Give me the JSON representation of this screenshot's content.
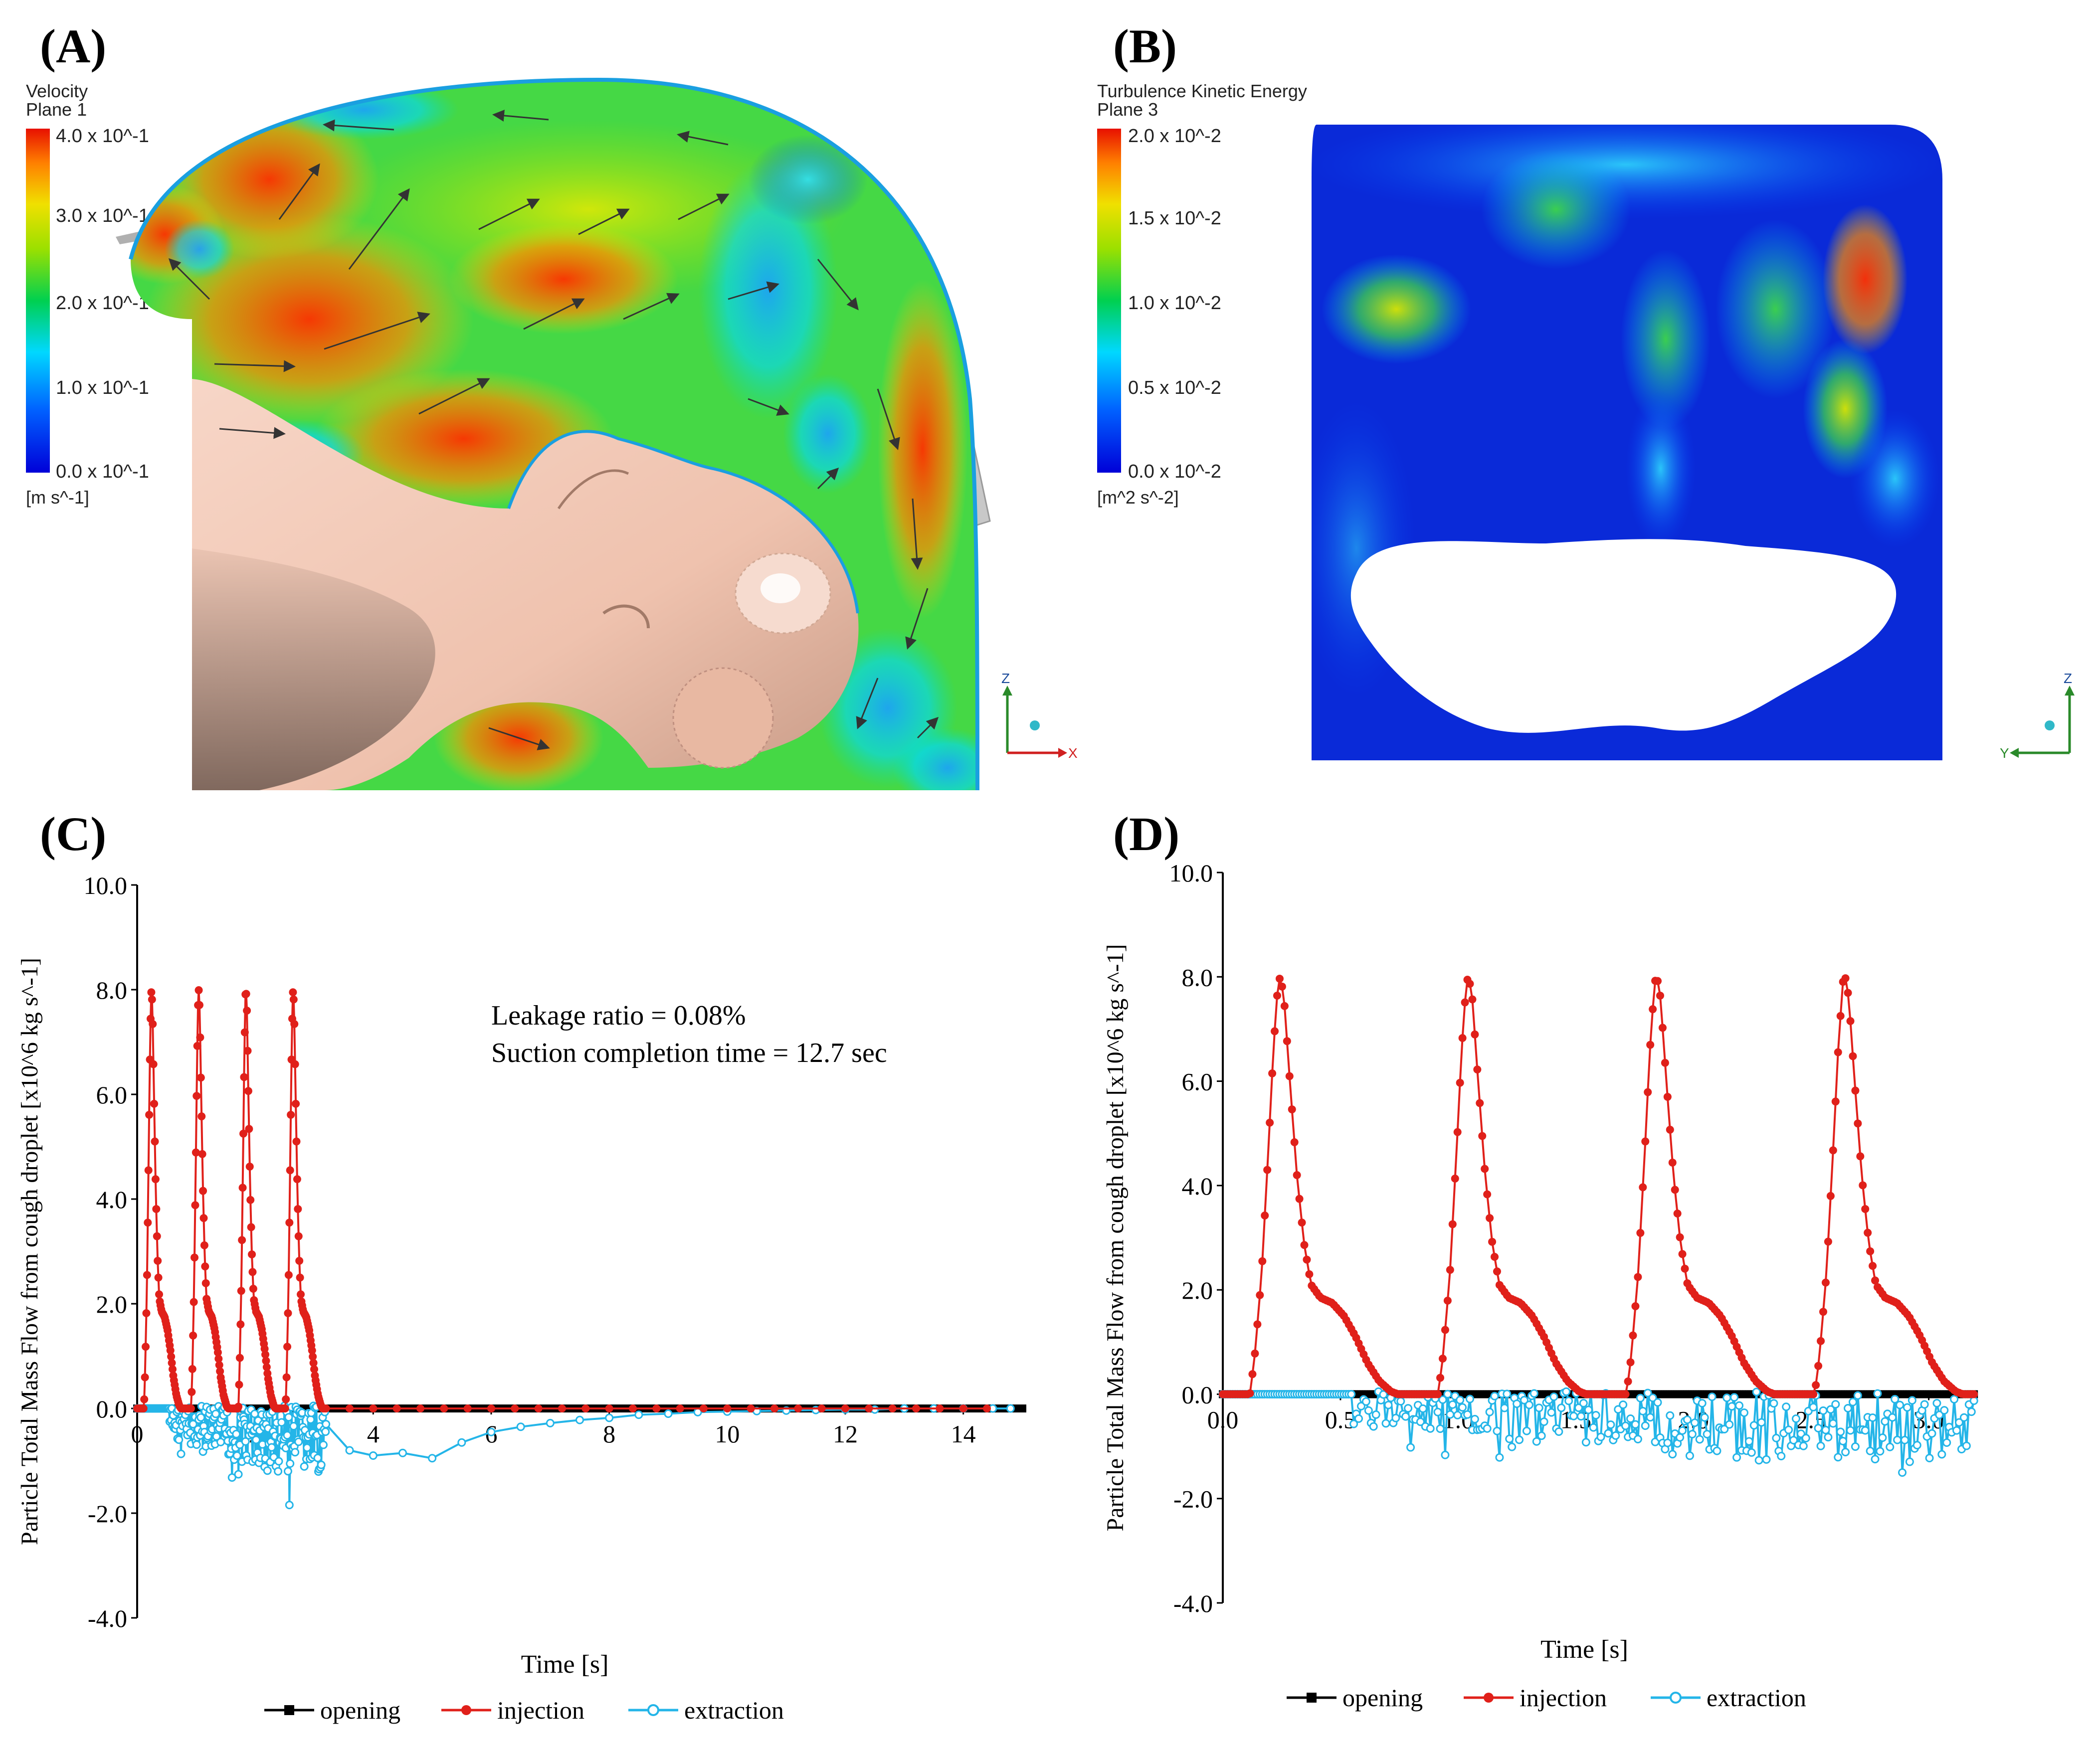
{
  "panels": {
    "a": {
      "letter": "(A)",
      "legend_title": "Velocity",
      "legend_subtitle": "Plane 1",
      "legend_ticks": [
        "4.0 x 10^-1",
        "3.0 x 10^-1",
        "2.0 x 10^-1",
        "1.0 x 10^-1",
        "0.0 x 10^-1"
      ],
      "legend_unit": "[m s^-1]",
      "axes": {
        "vertical": "Z",
        "horizontal": "X"
      }
    },
    "b": {
      "letter": "(B)",
      "legend_title": "Turbulence Kinetic Energy",
      "legend_subtitle": "Plane 3",
      "legend_ticks": [
        "2.0 x 10^-2",
        "1.5 x 10^-2",
        "1.0 x 10^-2",
        "0.5 x 10^-2",
        "0.0 x 10^-2"
      ],
      "legend_unit": "[m^2 s^-2]",
      "axes": {
        "vertical": "Z",
        "horizontal": "Y"
      }
    },
    "c": {
      "letter": "(C)",
      "annotation_1": "Leakage ratio = 0.08%",
      "annotation_2": "Suction completion time = 12.7 sec"
    },
    "d": {
      "letter": "(D)"
    }
  },
  "colors": {
    "opening": "#000000",
    "injection": "#e0201a",
    "extraction": "#24b5e8",
    "skin": "#f2c7b4"
  },
  "chart_data": [
    {
      "id": "C",
      "type": "line",
      "xlabel": "Time [s]",
      "ylabel": "Particle Total Mass Flow from cough droplet [x10^6 kg s^-1]",
      "xlim": [
        0,
        15
      ],
      "ylim": [
        -4,
        10
      ],
      "x_ticks": [
        0,
        2,
        4,
        6,
        8,
        10,
        12,
        14
      ],
      "x_tick_labels": [
        "0",
        "2",
        "4",
        "6",
        "8",
        "10",
        "12",
        "14"
      ],
      "y_ticks": [
        10,
        8,
        6,
        4,
        2,
        0,
        -2,
        -4
      ],
      "y_tick_labels": [
        "10.0",
        "8.0",
        "6.0",
        "4.0",
        "2.0",
        "0.0",
        "-2.0",
        "-4.0"
      ],
      "legend": [
        "opening",
        "injection",
        "extraction"
      ],
      "cough_peaks_s": [
        0.12,
        0.92,
        1.72,
        2.52
      ],
      "peak_value": 8.0,
      "extraction_tail": [
        [
          3.2,
          -0.3
        ],
        [
          3.6,
          -0.8
        ],
        [
          4.0,
          -0.9
        ],
        [
          4.5,
          -0.85
        ],
        [
          5.0,
          -0.95
        ],
        [
          5.5,
          -0.65
        ],
        [
          6.0,
          -0.45
        ],
        [
          6.5,
          -0.35
        ],
        [
          7.0,
          -0.28
        ],
        [
          7.5,
          -0.22
        ],
        [
          8.0,
          -0.18
        ],
        [
          8.5,
          -0.12
        ],
        [
          9.0,
          -0.1
        ],
        [
          9.5,
          -0.07
        ],
        [
          10.0,
          -0.06
        ],
        [
          10.5,
          -0.05
        ],
        [
          11.0,
          -0.04
        ],
        [
          11.5,
          -0.03
        ],
        [
          12.0,
          -0.02
        ],
        [
          12.5,
          -0.02
        ],
        [
          13.0,
          0.0
        ],
        [
          13.5,
          0.0
        ],
        [
          14.0,
          0.0
        ],
        [
          14.5,
          0.0
        ],
        [
          14.8,
          0.0
        ]
      ]
    },
    {
      "id": "D",
      "type": "line",
      "xlabel": "Time [s]",
      "ylabel": "Particle Total Mass Flow from cough droplet [x10^6 kg s^-1]",
      "xlim": [
        0,
        3.2
      ],
      "ylim": [
        -4,
        10
      ],
      "x_ticks": [
        0,
        0.5,
        1,
        1.5,
        2,
        2.5,
        3
      ],
      "x_tick_labels": [
        "0.0",
        "0.5",
        "1.0",
        "1.5",
        "2.0",
        "2.5",
        "3.0"
      ],
      "y_ticks": [
        10,
        8,
        6,
        4,
        2,
        0,
        -2,
        -4
      ],
      "y_tick_labels": [
        "10.0",
        "8.0",
        "6.0",
        "4.0",
        "2.0",
        "0.0",
        "-2.0",
        "-4.0"
      ],
      "legend": [
        "opening",
        "injection",
        "extraction"
      ],
      "cough_peaks_s": [
        0.12,
        0.92,
        1.72,
        2.52
      ],
      "peak_value": 8.0,
      "plateau_value": 1.8,
      "extraction_typical_min": -1.2,
      "extraction_min": -2.2
    }
  ]
}
